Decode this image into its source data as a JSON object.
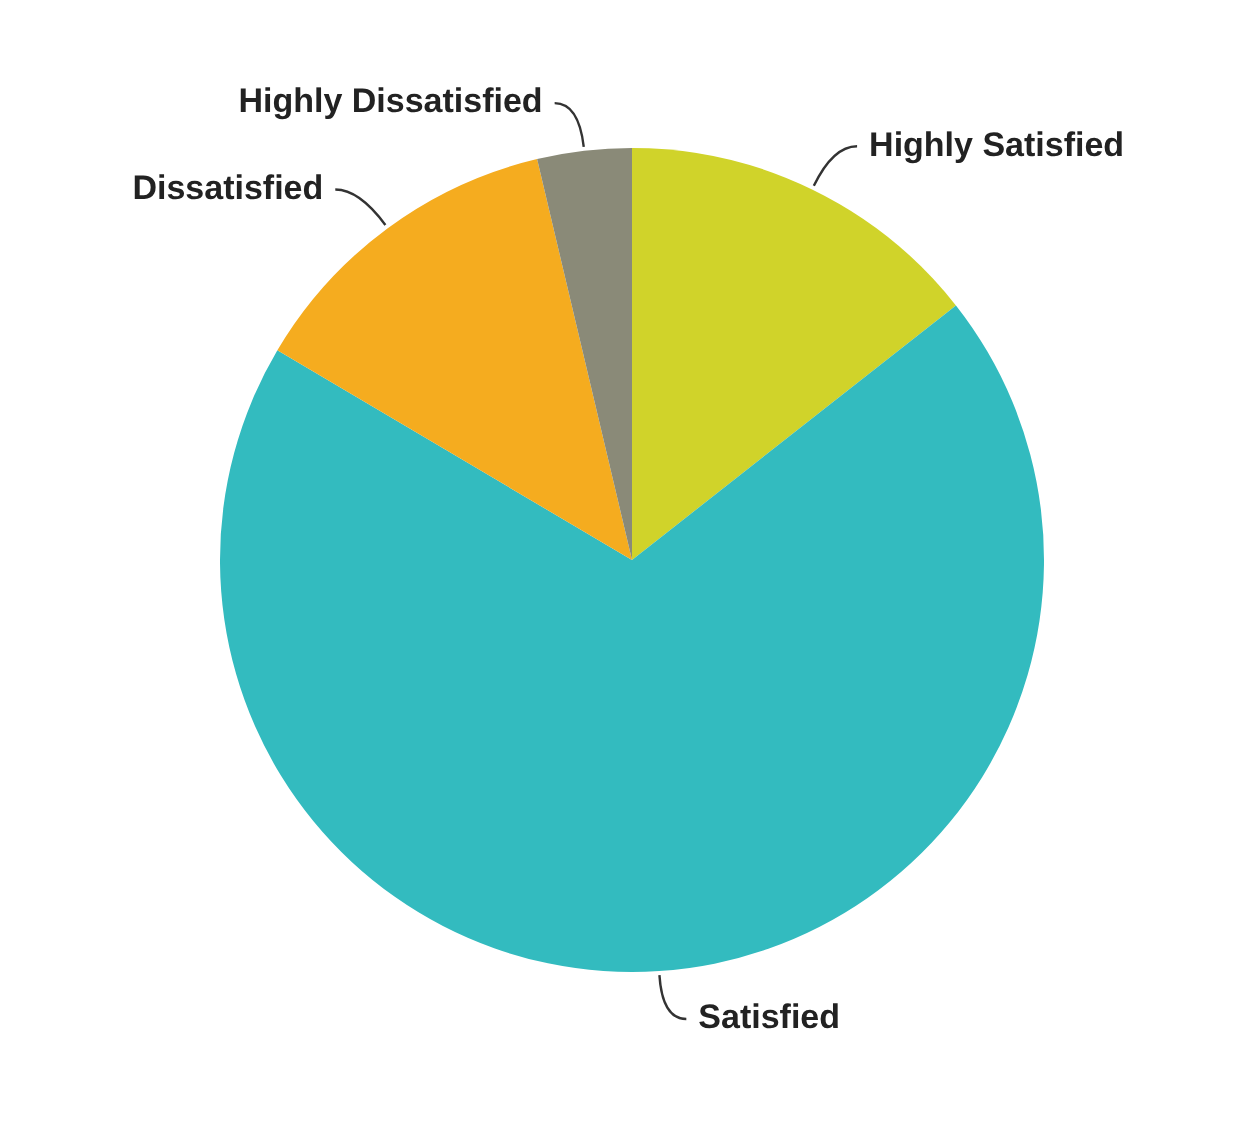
{
  "chart_data": {
    "type": "pie",
    "categories": [
      "Highly Satisfied",
      "Satisfied",
      "Dissatisfied",
      "Highly Dissatisfied"
    ],
    "values": [
      14.4,
      69.1,
      12.8,
      3.7
    ],
    "colors": [
      "#d0d32a",
      "#33bbbf",
      "#f5ac1f",
      "#8a8a78"
    ],
    "legend": false
  }
}
